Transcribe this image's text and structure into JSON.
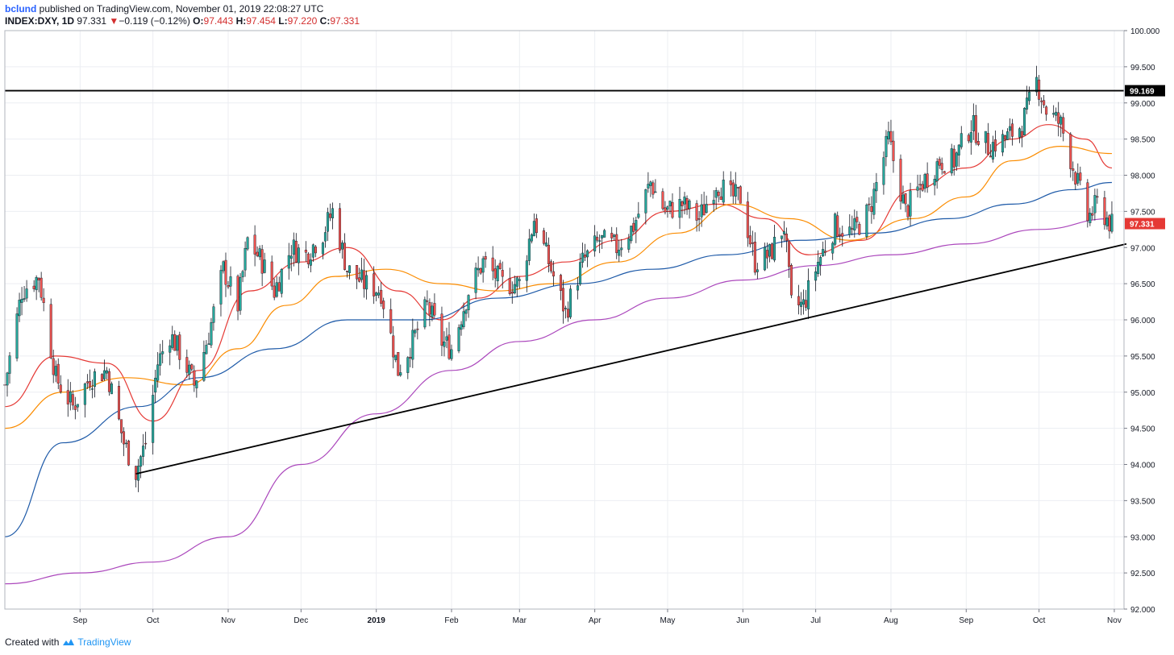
{
  "header": {
    "author": "bclund",
    "published_text": "published on TradingView.com, November 01, 2019 22:08:27 UTC",
    "symbol": "INDEX:DXY, 1D",
    "last": "97.331",
    "change_arrow": "▼",
    "change": "−0.119 (−0.12%)",
    "open_label": "O:",
    "open": "97.443",
    "high_label": "H:",
    "high": "97.454",
    "low_label": "L:",
    "low": "97.220",
    "close_label": "C:",
    "close": "97.331"
  },
  "footer": {
    "created_with": "Created with",
    "brand": "TradingView",
    "logo_icon": "tradingview-cloud-icon"
  },
  "colors": {
    "up": "#26a69a",
    "down": "#ef5350",
    "ma_fast": "#e53935",
    "ma_mid": "#fb8c00",
    "ma_slow": "#1e5aa8",
    "ma_long": "#ab47bc",
    "last_badge": "#e53935"
  },
  "chart_data": {
    "type": "candlestick",
    "title": "",
    "xlabel": "",
    "ylabel": "",
    "ylim": [
      92.0,
      100.0
    ],
    "grid": true,
    "y_ticks": [
      "92.000",
      "92.500",
      "93.000",
      "93.500",
      "94.000",
      "94.500",
      "95.000",
      "95.500",
      "96.000",
      "96.500",
      "97.000",
      "97.500",
      "98.000",
      "98.500",
      "99.000",
      "99.500",
      "100.000"
    ],
    "x_ticks": [
      {
        "label": "Sep",
        "date": "2018-09-01"
      },
      {
        "label": "Oct",
        "date": "2018-10-01"
      },
      {
        "label": "Nov",
        "date": "2018-11-01"
      },
      {
        "label": "Dec",
        "date": "2018-12-01"
      },
      {
        "label": "2019",
        "date": "2019-01-01"
      },
      {
        "label": "Feb",
        "date": "2019-02-01"
      },
      {
        "label": "Mar",
        "date": "2019-03-01"
      },
      {
        "label": "Apr",
        "date": "2019-04-01"
      },
      {
        "label": "May",
        "date": "2019-05-01"
      },
      {
        "label": "Jun",
        "date": "2019-06-01"
      },
      {
        "label": "Jul",
        "date": "2019-07-01"
      },
      {
        "label": "Aug",
        "date": "2019-08-01"
      },
      {
        "label": "Sep",
        "date": "2019-09-01"
      },
      {
        "label": "Oct",
        "date": "2019-10-01"
      },
      {
        "label": "Nov",
        "date": "2019-11-01"
      }
    ],
    "x_range": [
      "2018-08-01",
      "2019-11-05"
    ],
    "close_series": [
      [
        "2018-08-01",
        95.1
      ],
      [
        "2018-08-08",
        96.4
      ],
      [
        "2018-08-15",
        96.6
      ],
      [
        "2018-08-22",
        95.2
      ],
      [
        "2018-08-29",
        94.8
      ],
      [
        "2018-09-05",
        95.2
      ],
      [
        "2018-09-12",
        95.3
      ],
      [
        "2018-09-19",
        94.3
      ],
      [
        "2018-09-24",
        93.9
      ],
      [
        "2018-09-28",
        94.3
      ],
      [
        "2018-10-03",
        95.4
      ],
      [
        "2018-10-08",
        95.8
      ],
      [
        "2018-10-13",
        95.5
      ],
      [
        "2018-10-18",
        95.1
      ],
      [
        "2018-10-24",
        95.8
      ],
      [
        "2018-10-30",
        96.7
      ],
      [
        "2018-11-05",
        96.2
      ],
      [
        "2018-11-09",
        97.1
      ],
      [
        "2018-11-15",
        96.8
      ],
      [
        "2018-11-20",
        96.4
      ],
      [
        "2018-11-27",
        97.0
      ],
      [
        "2018-12-03",
        96.9
      ],
      [
        "2018-12-10",
        97.2
      ],
      [
        "2018-12-14",
        97.5
      ],
      [
        "2018-12-20",
        96.7
      ],
      [
        "2018-12-27",
        96.5
      ],
      [
        "2019-01-03",
        96.4
      ],
      [
        "2019-01-10",
        95.3
      ],
      [
        "2019-01-16",
        95.7
      ],
      [
        "2019-01-22",
        96.2
      ],
      [
        "2019-01-28",
        95.7
      ],
      [
        "2019-02-01",
        95.6
      ],
      [
        "2019-02-08",
        96.4
      ],
      [
        "2019-02-14",
        96.8
      ],
      [
        "2019-02-22",
        96.5
      ],
      [
        "2019-03-01",
        96.5
      ],
      [
        "2019-03-07",
        97.4
      ],
      [
        "2019-03-13",
        96.8
      ],
      [
        "2019-03-20",
        96.1
      ],
      [
        "2019-03-27",
        96.8
      ],
      [
        "2019-04-03",
        97.1
      ],
      [
        "2019-04-10",
        97.0
      ],
      [
        "2019-04-17",
        97.3
      ],
      [
        "2019-04-24",
        97.9
      ],
      [
        "2019-04-30",
        97.5
      ],
      [
        "2019-05-07",
        97.6
      ],
      [
        "2019-05-14",
        97.4
      ],
      [
        "2019-05-21",
        97.9
      ],
      [
        "2019-05-27",
        97.7
      ],
      [
        "2019-05-31",
        97.7
      ],
      [
        "2019-06-06",
        96.8
      ],
      [
        "2019-06-12",
        96.9
      ],
      [
        "2019-06-18",
        97.3
      ],
      [
        "2019-06-21",
        96.2
      ],
      [
        "2019-06-26",
        96.2
      ],
      [
        "2019-07-02",
        96.8
      ],
      [
        "2019-07-09",
        97.3
      ],
      [
        "2019-07-16",
        97.2
      ],
      [
        "2019-07-23",
        97.5
      ],
      [
        "2019-07-31",
        98.5
      ],
      [
        "2019-08-07",
        97.5
      ],
      [
        "2019-08-14",
        97.9
      ],
      [
        "2019-08-21",
        98.2
      ],
      [
        "2019-08-27",
        98.2
      ],
      [
        "2019-09-03",
        98.7
      ],
      [
        "2019-09-10",
        98.4
      ],
      [
        "2019-09-17",
        98.5
      ],
      [
        "2019-09-24",
        98.7
      ],
      [
        "2019-09-30",
        99.3
      ],
      [
        "2019-10-04",
        98.9
      ],
      [
        "2019-10-10",
        98.7
      ],
      [
        "2019-10-16",
        98.0
      ],
      [
        "2019-10-21",
        97.4
      ],
      [
        "2019-10-25",
        97.6
      ],
      [
        "2019-10-31",
        97.3
      ]
    ],
    "series": [
      {
        "color": "#e53935",
        "points": [
          [
            "2018-08-01",
            94.8
          ],
          [
            "2018-08-22",
            95.5
          ],
          [
            "2018-09-12",
            95.4
          ],
          [
            "2018-10-01",
            94.6
          ],
          [
            "2018-10-20",
            95.3
          ],
          [
            "2018-11-10",
            96.4
          ],
          [
            "2018-12-01",
            96.8
          ],
          [
            "2018-12-20",
            97.0
          ],
          [
            "2019-01-10",
            96.4
          ],
          [
            "2019-01-28",
            96.0
          ],
          [
            "2019-02-12",
            96.3
          ],
          [
            "2019-03-01",
            96.6
          ],
          [
            "2019-03-20",
            96.8
          ],
          [
            "2019-04-10",
            97.1
          ],
          [
            "2019-05-01",
            97.5
          ],
          [
            "2019-05-22",
            97.6
          ],
          [
            "2019-06-10",
            97.4
          ],
          [
            "2019-06-28",
            96.9
          ],
          [
            "2019-07-20",
            97.1
          ],
          [
            "2019-08-10",
            97.8
          ],
          [
            "2019-09-01",
            98.1
          ],
          [
            "2019-09-20",
            98.5
          ],
          [
            "2019-10-05",
            98.7
          ],
          [
            "2019-10-20",
            98.5
          ],
          [
            "2019-10-31",
            98.1
          ]
        ]
      },
      {
        "color": "#fb8c00",
        "points": [
          [
            "2018-08-01",
            94.5
          ],
          [
            "2018-08-25",
            95.0
          ],
          [
            "2018-09-20",
            95.2
          ],
          [
            "2018-10-15",
            95.1
          ],
          [
            "2018-11-05",
            95.6
          ],
          [
            "2018-11-25",
            96.2
          ],
          [
            "2018-12-15",
            96.6
          ],
          [
            "2019-01-05",
            96.7
          ],
          [
            "2019-01-28",
            96.5
          ],
          [
            "2019-02-20",
            96.4
          ],
          [
            "2019-03-15",
            96.5
          ],
          [
            "2019-04-10",
            96.8
          ],
          [
            "2019-05-05",
            97.2
          ],
          [
            "2019-05-28",
            97.6
          ],
          [
            "2019-06-20",
            97.4
          ],
          [
            "2019-07-15",
            97.1
          ],
          [
            "2019-08-10",
            97.4
          ],
          [
            "2019-09-01",
            97.7
          ],
          [
            "2019-09-20",
            98.2
          ],
          [
            "2019-10-10",
            98.4
          ],
          [
            "2019-10-31",
            98.3
          ]
        ]
      },
      {
        "color": "#1e5aa8",
        "points": [
          [
            "2018-08-01",
            93.0
          ],
          [
            "2018-08-25",
            94.3
          ],
          [
            "2018-09-25",
            94.8
          ],
          [
            "2018-10-20",
            95.2
          ],
          [
            "2018-11-20",
            95.6
          ],
          [
            "2018-12-20",
            96.0
          ],
          [
            "2019-01-20",
            96.0
          ],
          [
            "2019-02-20",
            96.3
          ],
          [
            "2019-03-25",
            96.5
          ],
          [
            "2019-04-25",
            96.7
          ],
          [
            "2019-05-25",
            96.9
          ],
          [
            "2019-06-25",
            97.1
          ],
          [
            "2019-07-25",
            97.2
          ],
          [
            "2019-08-25",
            97.4
          ],
          [
            "2019-09-20",
            97.6
          ],
          [
            "2019-10-15",
            97.8
          ],
          [
            "2019-10-31",
            97.9
          ]
        ]
      },
      {
        "color": "#ab47bc",
        "points": [
          [
            "2018-08-01",
            92.35
          ],
          [
            "2018-09-01",
            92.5
          ],
          [
            "2018-10-01",
            92.65
          ],
          [
            "2018-11-01",
            93.0
          ],
          [
            "2018-12-01",
            94.0
          ],
          [
            "2019-01-01",
            94.7
          ],
          [
            "2019-02-01",
            95.3
          ],
          [
            "2019-03-01",
            95.7
          ],
          [
            "2019-04-01",
            96.0
          ],
          [
            "2019-05-01",
            96.3
          ],
          [
            "2019-06-01",
            96.55
          ],
          [
            "2019-07-01",
            96.75
          ],
          [
            "2019-08-01",
            96.9
          ],
          [
            "2019-09-01",
            97.05
          ],
          [
            "2019-10-01",
            97.25
          ],
          [
            "2019-10-31",
            97.4
          ]
        ]
      }
    ],
    "horizontal_line": {
      "value": 99.169,
      "label": "99.169"
    },
    "trendline": {
      "from": [
        "2018-09-24",
        93.87
      ],
      "to": [
        "2019-11-06",
        97.05
      ]
    },
    "last_price_label": "97.331"
  }
}
